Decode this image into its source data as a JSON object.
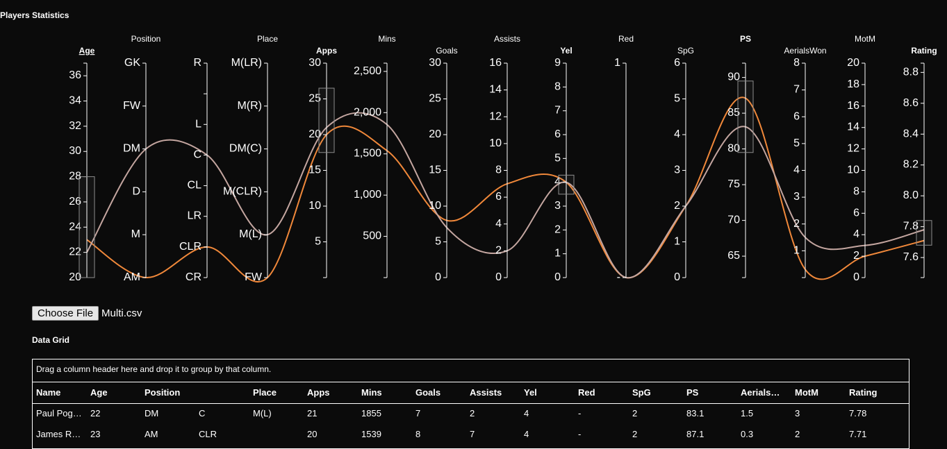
{
  "title": "Players Statistics",
  "colors": {
    "background": "#0b0b0b",
    "series1": "#f0883a",
    "series2": "#c4a6a0",
    "brush": "#8c8c8c"
  },
  "chart_data": {
    "type": "parallel-coordinates",
    "dimensions": [
      {
        "key": "age",
        "label": "Age",
        "style": "bold-underline",
        "row": 2,
        "scale": "linear",
        "domain": [
          20,
          37
        ],
        "ticks": [
          {
            "v": 20,
            "t": "20"
          },
          {
            "v": 22,
            "t": "22"
          },
          {
            "v": 24,
            "t": "24"
          },
          {
            "v": 26,
            "t": "26"
          },
          {
            "v": 28,
            "t": "28"
          },
          {
            "v": 30,
            "t": "30"
          },
          {
            "v": 32,
            "t": "32"
          },
          {
            "v": 34,
            "t": "34"
          },
          {
            "v": 36,
            "t": "36"
          }
        ],
        "brush": [
          20,
          28
        ]
      },
      {
        "key": "position",
        "label": "Position",
        "row": 1,
        "scale": "ordinal",
        "categories": [
          "GK",
          "FW",
          "DM",
          "D",
          "M",
          "AM"
        ]
      },
      {
        "key": "position2",
        "label": "",
        "row": 1,
        "scale": "ordinal",
        "categories": [
          "R",
          "",
          "L",
          "C",
          "CL",
          "LR",
          "CLR",
          "CR"
        ]
      },
      {
        "key": "place",
        "label": "Place",
        "row": 1,
        "scale": "ordinal",
        "categories": [
          "M(LR)",
          "M(R)",
          "DM(C)",
          "M(CLR)",
          "M(L)",
          "FW"
        ]
      },
      {
        "key": "apps",
        "label": "Apps",
        "style": "bold",
        "row": 2,
        "scale": "linear",
        "domain": [
          0,
          30
        ],
        "ticks": [
          {
            "v": 5,
            "t": "5"
          },
          {
            "v": 10,
            "t": "10"
          },
          {
            "v": 15,
            "t": "15"
          },
          {
            "v": 20,
            "t": "20"
          },
          {
            "v": 25,
            "t": "25"
          },
          {
            "v": 30,
            "t": "30"
          }
        ],
        "brush": [
          17.5,
          26.5
        ]
      },
      {
        "key": "mins",
        "label": "Mins",
        "row": 1,
        "scale": "linear",
        "domain": [
          0,
          2600
        ],
        "ticks": [
          {
            "v": 500,
            "t": "500"
          },
          {
            "v": 1000,
            "t": "1,000"
          },
          {
            "v": 1500,
            "t": "1,500"
          },
          {
            "v": 2000,
            "t": "2,000"
          },
          {
            "v": 2500,
            "t": "2,500"
          }
        ]
      },
      {
        "key": "goals",
        "label": "Goals",
        "row": 2,
        "scale": "linear",
        "domain": [
          0,
          30
        ],
        "ticks": [
          {
            "v": 0,
            "t": "0"
          },
          {
            "v": 5,
            "t": "5"
          },
          {
            "v": 10,
            "t": "10"
          },
          {
            "v": 15,
            "t": "15"
          },
          {
            "v": 20,
            "t": "20"
          },
          {
            "v": 25,
            "t": "25"
          },
          {
            "v": 30,
            "t": "30"
          }
        ]
      },
      {
        "key": "assists",
        "label": "Assists",
        "row": 1,
        "scale": "linear",
        "domain": [
          0,
          16
        ],
        "ticks": [
          {
            "v": 0,
            "t": "0"
          },
          {
            "v": 2,
            "t": "2"
          },
          {
            "v": 4,
            "t": "4"
          },
          {
            "v": 6,
            "t": "6"
          },
          {
            "v": 8,
            "t": "8"
          },
          {
            "v": 10,
            "t": "10"
          },
          {
            "v": 12,
            "t": "12"
          },
          {
            "v": 14,
            "t": "14"
          },
          {
            "v": 16,
            "t": "16"
          }
        ]
      },
      {
        "key": "yel",
        "label": "Yel",
        "style": "bold",
        "row": 2,
        "scale": "linear",
        "domain": [
          0,
          9
        ],
        "ticks": [
          {
            "v": 0,
            "t": "0"
          },
          {
            "v": 1,
            "t": "1"
          },
          {
            "v": 2,
            "t": "2"
          },
          {
            "v": 3,
            "t": "3"
          },
          {
            "v": 4,
            "t": "4"
          },
          {
            "v": 5,
            "t": "5"
          },
          {
            "v": 6,
            "t": "6"
          },
          {
            "v": 7,
            "t": "7"
          },
          {
            "v": 8,
            "t": "8"
          },
          {
            "v": 9,
            "t": "9"
          }
        ],
        "brush": [
          3.5,
          4.3
        ]
      },
      {
        "key": "red",
        "label": "Red",
        "row": 1,
        "scale": "ordinal",
        "categories": [
          "1",
          "-"
        ]
      },
      {
        "key": "spg",
        "label": "SpG",
        "row": 2,
        "scale": "linear",
        "domain": [
          0,
          6
        ],
        "ticks": [
          {
            "v": 0,
            "t": "0"
          },
          {
            "v": 1,
            "t": "1"
          },
          {
            "v": 2,
            "t": "2"
          },
          {
            "v": 3,
            "t": "3"
          },
          {
            "v": 4,
            "t": "4"
          },
          {
            "v": 5,
            "t": "5"
          },
          {
            "v": 6,
            "t": "6"
          }
        ]
      },
      {
        "key": "ps",
        "label": "PS",
        "style": "bold",
        "row": 1,
        "scale": "linear",
        "domain": [
          62,
          92
        ],
        "ticks": [
          {
            "v": 65,
            "t": "65"
          },
          {
            "v": 70,
            "t": "70"
          },
          {
            "v": 75,
            "t": "75"
          },
          {
            "v": 80,
            "t": "80"
          },
          {
            "v": 85,
            "t": "85"
          },
          {
            "v": 90,
            "t": "90"
          }
        ],
        "brush": [
          79.5,
          89.5
        ]
      },
      {
        "key": "aerials",
        "label": "AerialsWon",
        "row": 2,
        "scale": "linear",
        "domain": [
          0,
          8
        ],
        "ticks": [
          {
            "v": 1,
            "t": "1"
          },
          {
            "v": 2,
            "t": "2"
          },
          {
            "v": 3,
            "t": "3"
          },
          {
            "v": 4,
            "t": "4"
          },
          {
            "v": 5,
            "t": "5"
          },
          {
            "v": 6,
            "t": "6"
          },
          {
            "v": 7,
            "t": "7"
          },
          {
            "v": 8,
            "t": "8"
          }
        ]
      },
      {
        "key": "motm",
        "label": "MotM",
        "row": 1,
        "scale": "linear",
        "domain": [
          0,
          20
        ],
        "ticks": [
          {
            "v": 0,
            "t": "0"
          },
          {
            "v": 2,
            "t": "2"
          },
          {
            "v": 4,
            "t": "4"
          },
          {
            "v": 6,
            "t": "6"
          },
          {
            "v": 8,
            "t": "8"
          },
          {
            "v": 10,
            "t": "10"
          },
          {
            "v": 12,
            "t": "12"
          },
          {
            "v": 14,
            "t": "14"
          },
          {
            "v": 16,
            "t": "16"
          },
          {
            "v": 18,
            "t": "18"
          },
          {
            "v": 20,
            "t": "20"
          }
        ]
      },
      {
        "key": "rating",
        "label": "Rating",
        "style": "bold",
        "row": 2,
        "scale": "linear",
        "domain": [
          7.47,
          8.86
        ],
        "ticks": [
          {
            "v": 7.6,
            "t": "7.6"
          },
          {
            "v": 7.8,
            "t": "7.8"
          },
          {
            "v": 8.0,
            "t": "8.0"
          },
          {
            "v": 8.2,
            "t": "8.2"
          },
          {
            "v": 8.4,
            "t": "8.4"
          },
          {
            "v": 8.6,
            "t": "8.6"
          },
          {
            "v": 8.8,
            "t": "8.8"
          }
        ],
        "brush": [
          7.68,
          7.84
        ]
      }
    ],
    "series": [
      {
        "color": "#f0883a",
        "values": {
          "age": 23,
          "position": "AM",
          "position2": "CLR",
          "place": "FW",
          "apps": 20,
          "mins": 1539,
          "goals": 8,
          "assists": 7,
          "yel": 4,
          "red": "-",
          "spg": 2,
          "ps": 87.1,
          "aerials": 0.3,
          "motm": 2,
          "rating": 7.71
        }
      },
      {
        "color": "#c4a6a0",
        "values": {
          "age": 22,
          "position": "DM",
          "position2": "C",
          "place": "M(L)",
          "apps": 21,
          "mins": 1855,
          "goals": 7,
          "assists": 2,
          "yel": 4,
          "red": "-",
          "spg": 2,
          "ps": 83.1,
          "aerials": 1.5,
          "motm": 3,
          "rating": 7.78
        }
      }
    ]
  },
  "file_input": {
    "button_label": "Choose File",
    "file_name": "Multi.csv"
  },
  "grid": {
    "title": "Data Grid",
    "group_panel": "Drag a column header here and drop it to group by that column.",
    "columns": [
      "Name",
      "Age",
      "Position",
      "",
      "Place",
      "Apps",
      "Mins",
      "Goals",
      "Assists",
      "Yel",
      "Red",
      "SpG",
      "PS",
      "Aerials…",
      "MotM",
      "Rating"
    ],
    "rows": [
      [
        "Paul Pog…",
        "22",
        "DM",
        "C",
        "M(L)",
        "21",
        "1855",
        "7",
        "2",
        "4",
        "-",
        "2",
        "83.1",
        "1.5",
        "3",
        "7.78"
      ],
      [
        "James R…",
        "23",
        "AM",
        "CLR",
        "",
        "20",
        "1539",
        "8",
        "7",
        "4",
        "-",
        "2",
        "87.1",
        "0.3",
        "2",
        "7.71"
      ]
    ]
  }
}
